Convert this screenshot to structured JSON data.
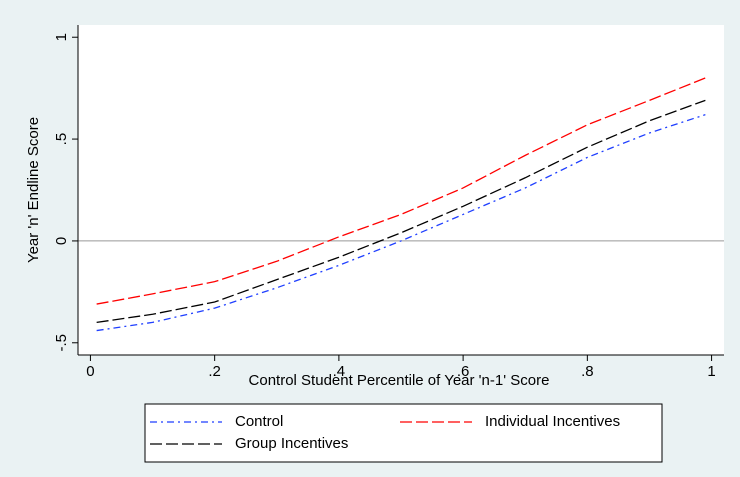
{
  "chart_data": {
    "type": "line",
    "x_label": "Control Student Percentile of Year 'n-1' Score",
    "y_label": "Year 'n' Endline Score",
    "x": [
      0.01,
      0.1,
      0.2,
      0.3,
      0.4,
      0.5,
      0.6,
      0.7,
      0.8,
      0.9,
      0.99
    ],
    "series": [
      {
        "name": "Control",
        "color": "#1f3fff",
        "dash": "dashdot",
        "values": [
          -0.44,
          -0.4,
          -0.33,
          -0.23,
          -0.12,
          0.0,
          0.13,
          0.26,
          0.41,
          0.53,
          0.62
        ]
      },
      {
        "name": "Individual Incentives",
        "color": "#ff0000",
        "dash": "longdash",
        "values": [
          -0.31,
          -0.26,
          -0.2,
          -0.1,
          0.02,
          0.13,
          0.26,
          0.42,
          0.57,
          0.69,
          0.8
        ]
      },
      {
        "name": "Group Incentives",
        "color": "#000000",
        "dash": "longdash",
        "values": [
          -0.4,
          -0.36,
          -0.3,
          -0.19,
          -0.08,
          0.04,
          0.17,
          0.31,
          0.46,
          0.59,
          0.69
        ]
      }
    ],
    "xlim": [
      -0.02,
      1.02
    ],
    "ylim": [
      -0.56,
      1.06
    ],
    "xticks": [
      0,
      {
        "value": 0.2,
        "label": ".2"
      },
      {
        "value": 0.4,
        "label": ".4"
      },
      {
        "value": 0.6,
        "label": ".6"
      },
      {
        "value": 0.8,
        "label": ".8"
      },
      1
    ],
    "yticks": [
      {
        "value": -0.5,
        "label": "-.5"
      },
      0,
      {
        "value": 0.5,
        "label": ".5"
      },
      1
    ],
    "reference_line": 0,
    "legend": "bottom"
  }
}
